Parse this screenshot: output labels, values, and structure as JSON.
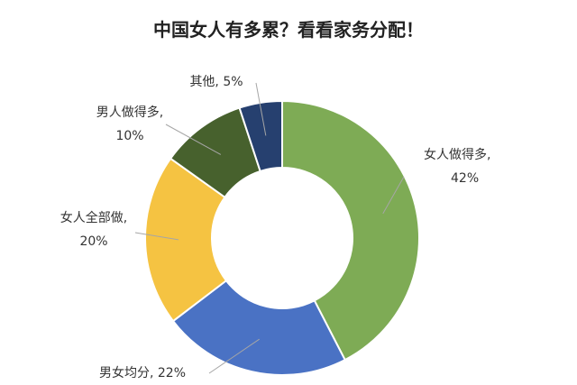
{
  "chart_data": {
    "type": "pie",
    "variant": "donut",
    "title": "中国女人有多累？看看家务分配！",
    "slices": [
      {
        "label": "女人做得多",
        "value": 42,
        "display": "42%",
        "color": "#7eab55"
      },
      {
        "label": "男女均分",
        "value": 22,
        "display": "22%",
        "color": "#4a72c4"
      },
      {
        "label": "女人全部做",
        "value": 20,
        "display": "20%",
        "color": "#f5c342"
      },
      {
        "label": "男人做得多",
        "value": 10,
        "display": "10%",
        "color": "#47612d"
      },
      {
        "label": "其他",
        "value": 5,
        "display": "5%",
        "color": "#26406f"
      }
    ],
    "legend": "none",
    "data_labels": "outside with leader lines"
  }
}
